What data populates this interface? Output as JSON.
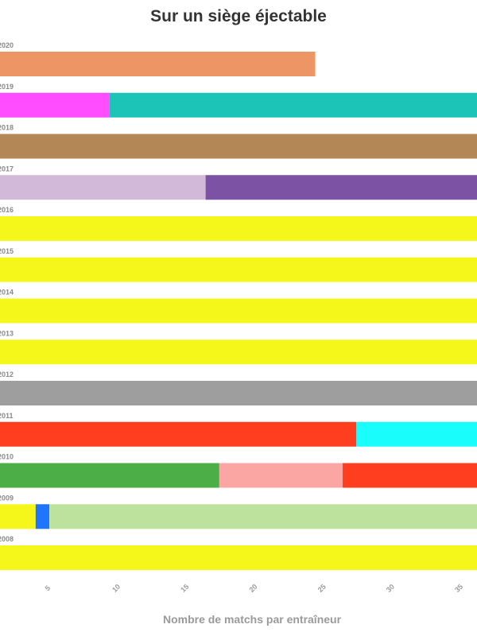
{
  "chart_data": {
    "type": "bar",
    "orientation": "horizontal",
    "stacked": true,
    "title": "Sur un siège éjectable",
    "xlabel": "Nombre de matchs par entraîneur",
    "ylabel": "",
    "xlim": [
      1.4,
      36.2
    ],
    "x_ticks": [
      5,
      10,
      15,
      20,
      25,
      30,
      35
    ],
    "grid": false,
    "legend": "none",
    "categories": [
      "2020",
      "2019",
      "2018",
      "2017",
      "2016",
      "2015",
      "2014",
      "2013",
      "2012",
      "2011",
      "2010",
      "2009",
      "2008"
    ],
    "stacks": [
      [
        {
          "value": 23,
          "color": "#EE9565"
        }
      ],
      [
        {
          "value": 8,
          "color": "#FF4DFF"
        },
        {
          "value": 30,
          "color": "#1CC4B8"
        }
      ],
      [
        {
          "value": 38,
          "color": "#B48856"
        }
      ],
      [
        {
          "value": 15,
          "color": "#D2B9D9"
        },
        {
          "value": 23,
          "color": "#7C52A4"
        }
      ],
      [
        {
          "value": 38,
          "color": "#F5F71B"
        }
      ],
      [
        {
          "value": 38,
          "color": "#F5F71B"
        }
      ],
      [
        {
          "value": 38,
          "color": "#F5F71B"
        }
      ],
      [
        {
          "value": 38,
          "color": "#F5F71B"
        }
      ],
      [
        {
          "value": 38,
          "color": "#9E9E9E"
        }
      ],
      [
        {
          "value": 26,
          "color": "#FF3D1F"
        },
        {
          "value": 12,
          "color": "#19FDFC"
        }
      ],
      [
        {
          "value": 16,
          "color": "#4BAE47"
        },
        {
          "value": 9,
          "color": "#FCA6A4"
        },
        {
          "value": 13,
          "color": "#FF3D1F"
        }
      ],
      [
        {
          "value": 2.6,
          "color": "#F5F71B"
        },
        {
          "value": 1,
          "color": "#1F75FE"
        },
        {
          "value": 34.4,
          "color": "#BCE29E"
        }
      ],
      [
        {
          "value": 38,
          "color": "#F5F71B"
        }
      ]
    ]
  }
}
